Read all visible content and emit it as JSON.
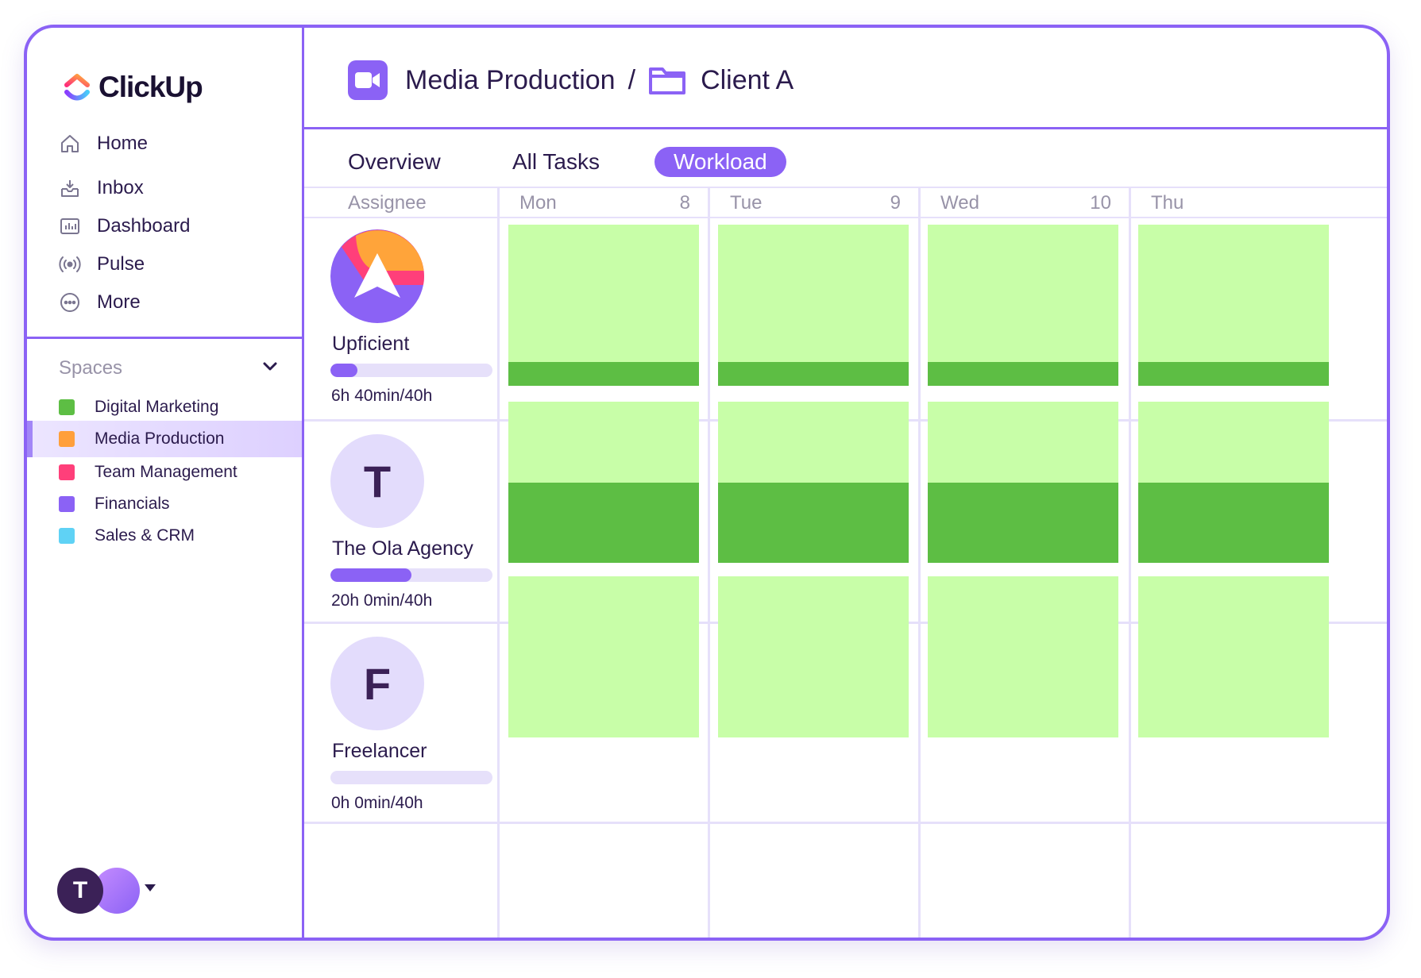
{
  "brand": {
    "name": "ClickUp"
  },
  "nav": [
    {
      "label": "Home",
      "icon": "home-icon"
    },
    {
      "label": "Inbox",
      "icon": "inbox-icon"
    },
    {
      "label": "Dashboard",
      "icon": "dashboard-icon"
    },
    {
      "label": "Pulse",
      "icon": "pulse-icon"
    },
    {
      "label": "More",
      "icon": "more-icon"
    }
  ],
  "spaces": {
    "title": "Spaces",
    "items": [
      {
        "label": "Digital Marketing",
        "color": "#5dbe44",
        "active": false
      },
      {
        "label": "Media Production",
        "color": "#ff9f3b",
        "active": true
      },
      {
        "label": "Team Management",
        "color": "#ff3f7a",
        "active": false
      },
      {
        "label": "Financials",
        "color": "#8b62f5",
        "active": false
      },
      {
        "label": "Sales & CRM",
        "color": "#5fd2f5",
        "active": false
      }
    ]
  },
  "user": {
    "initial": "T"
  },
  "breadcrumb": {
    "space": "Media Production",
    "separator": "/",
    "folder": "Client A"
  },
  "tabs": [
    {
      "label": "Overview",
      "active": false
    },
    {
      "label": "All Tasks",
      "active": false
    },
    {
      "label": "Workload",
      "active": true
    }
  ],
  "grid": {
    "assignee_header": "Assignee",
    "days": [
      {
        "name": "Mon",
        "date": "8"
      },
      {
        "name": "Tue",
        "date": "9"
      },
      {
        "name": "Wed",
        "date": "10"
      },
      {
        "name": "Thu",
        "date": ""
      }
    ]
  },
  "assignees": [
    {
      "name": "Upficient",
      "initial": "",
      "time": "6h 40min/40h",
      "progress": 0.167,
      "daily_load": [
        0.15,
        0.15,
        0.15,
        0.15
      ]
    },
    {
      "name": "The Ola Agency",
      "initial": "T",
      "time": "20h 0min/40h",
      "progress": 0.5,
      "daily_load": [
        0.5,
        0.5,
        0.5,
        0.5
      ]
    },
    {
      "name": "Freelancer",
      "initial": "F",
      "time": "0h 0min/40h",
      "progress": 0,
      "daily_load": [
        0,
        0,
        0,
        0
      ]
    }
  ],
  "colors": {
    "accent": "#8b62f5",
    "capacity_free": "#c8fea8",
    "capacity_used": "#5dbe44"
  }
}
